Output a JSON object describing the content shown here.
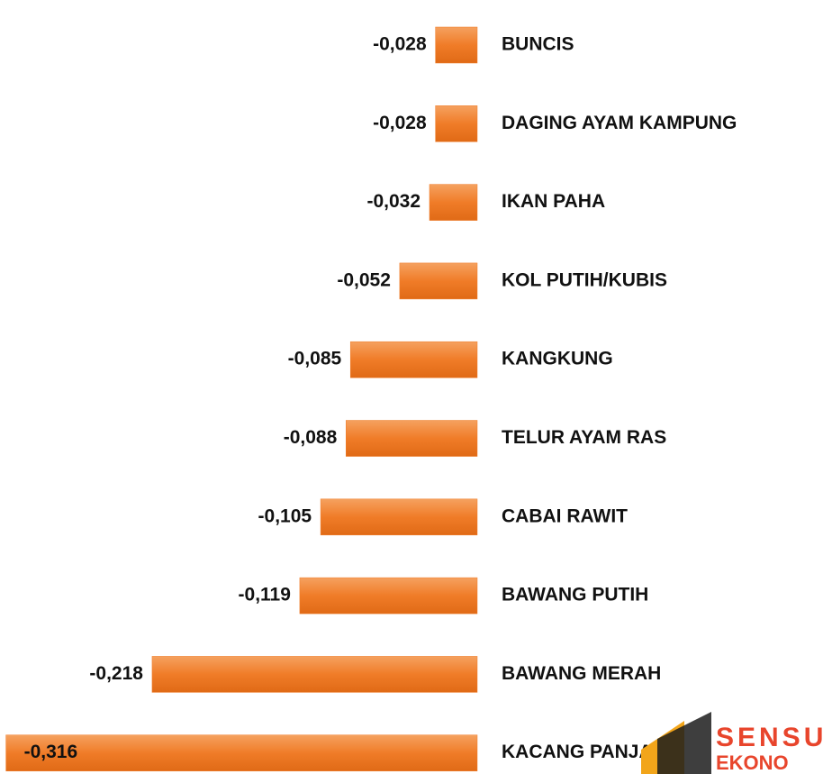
{
  "chart_data": {
    "type": "barh",
    "categories": [
      "BUNCIS",
      "DAGING AYAM KAMPUNG",
      "IKAN PAHA",
      "KOL PUTIH/KUBIS",
      "KANGKUNG",
      "TELUR AYAM RAS",
      "CABAI RAWIT",
      "BAWANG PUTIH",
      "BAWANG MERAH",
      "KACANG PANJANG"
    ],
    "values": [
      -0.028,
      -0.028,
      -0.032,
      -0.052,
      -0.085,
      -0.088,
      -0.105,
      -0.119,
      -0.218,
      -0.316
    ],
    "value_labels": [
      "-0,028",
      "-0,028",
      "-0,032",
      "-0,052",
      "-0,085",
      "-0,088",
      "-0,105",
      "-0,119",
      "-0,218",
      "-0,316"
    ],
    "color": "#f07c28",
    "xlim": [
      -0.32,
      0
    ],
    "grid": false,
    "logo": {
      "line1": "SENSU",
      "line2": "EKONO"
    }
  }
}
